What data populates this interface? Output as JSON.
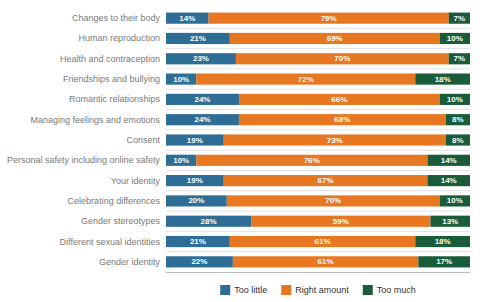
{
  "chart_data": {
    "type": "bar",
    "orientation": "horizontal",
    "stacked": true,
    "data_labels": true,
    "tick_labels": "y",
    "legend": "bottom",
    "categories": [
      "Changes to their body",
      "Human reproduction",
      "Health and contraception",
      "Friendships and bullying",
      "Romantic relationships",
      "Managing feelings and emotions",
      "Consent",
      "Personal safety including online safety",
      "Your identity",
      "Celebrating differences",
      "Gender stereotypes",
      "Different sexual identities",
      "Gender identity"
    ],
    "xlim": [
      0,
      100
    ],
    "series": [
      {
        "name": "Too little",
        "color": "#2e6e96",
        "values": [
          14,
          21,
          23,
          10,
          24,
          24,
          19,
          10,
          19,
          20,
          28,
          21,
          22
        ],
        "value_labels": [
          "14%",
          "21%",
          "23%",
          "10%",
          "24%",
          "24%",
          "19%",
          "10%",
          "19%",
          "20%",
          "28%",
          "21%",
          "22%"
        ]
      },
      {
        "name": "Right amount",
        "color": "#e87722",
        "values": [
          79,
          69,
          70,
          72,
          66,
          68,
          73,
          76,
          67,
          70,
          59,
          61,
          61
        ],
        "value_labels": [
          "79%",
          "69%",
          "70%",
          "72%",
          "66%",
          "68%",
          "73%",
          "76%",
          "67%",
          "70%",
          "59%",
          "61%",
          "61%"
        ]
      },
      {
        "name": "Too much",
        "color": "#1a5c3a",
        "values": [
          7,
          10,
          7,
          18,
          10,
          8,
          8,
          14,
          14,
          10,
          13,
          18,
          17
        ],
        "value_labels": [
          "7%",
          "10%",
          "7%",
          "18%",
          "10%",
          "8%",
          "8%",
          "14%",
          "14%",
          "10%",
          "13%",
          "18%",
          "17%"
        ]
      }
    ]
  }
}
